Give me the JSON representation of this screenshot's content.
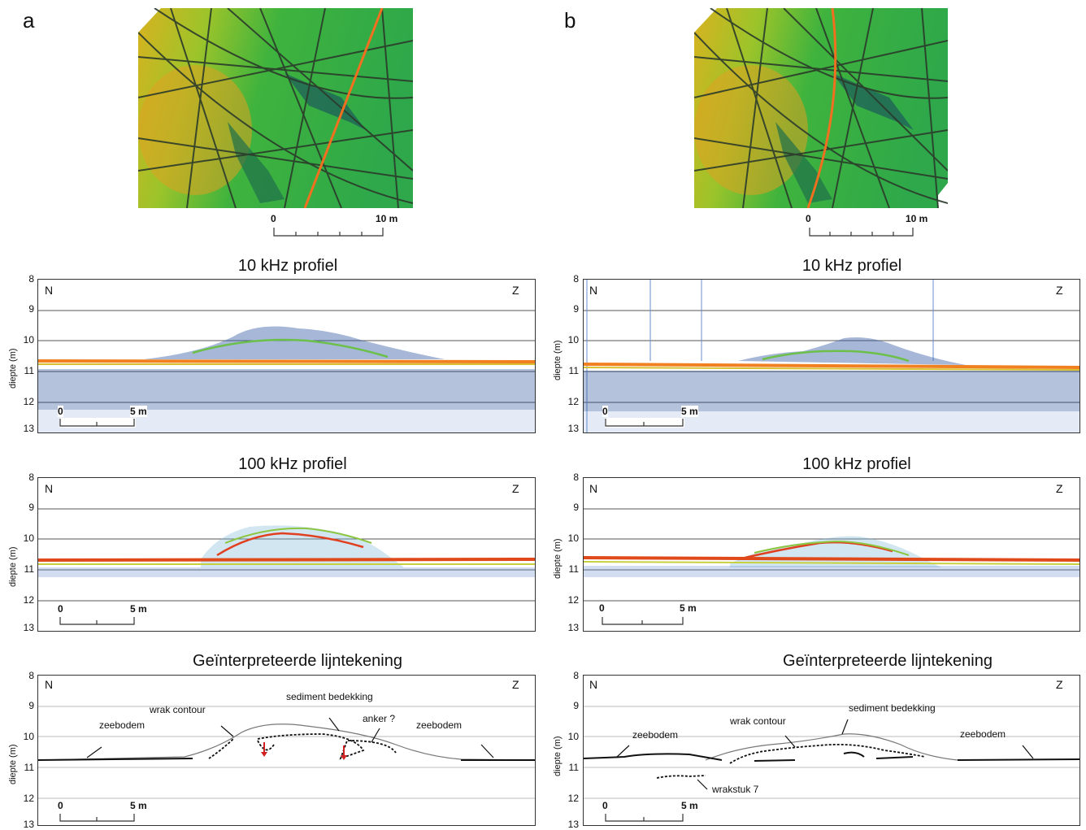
{
  "panels": [
    {
      "letter": "a",
      "map_scale": {
        "start": "0",
        "end": "10 m"
      },
      "profiles": [
        {
          "title": "10 kHz profiel",
          "ylabel": "diepte (m)",
          "yticks": [
            "8",
            "9",
            "10",
            "11",
            "12",
            "13"
          ],
          "north": "N",
          "south": "Z",
          "scale": {
            "start": "0",
            "end": "5 m"
          }
        },
        {
          "title": "100 kHz profiel",
          "ylabel": "diepte (m)",
          "yticks": [
            "8",
            "9",
            "10",
            "11",
            "12",
            "13"
          ],
          "north": "N",
          "south": "Z",
          "scale": {
            "start": "0",
            "end": "5 m"
          }
        },
        {
          "title": "Geïnterpreteerde lijntekening",
          "ylabel": "diepte (m)",
          "yticks": [
            "8",
            "9",
            "10",
            "11",
            "12",
            "13"
          ],
          "north": "N",
          "south": "Z",
          "scale": {
            "start": "0",
            "end": "5 m"
          }
        }
      ],
      "annotations": [
        "zeebodem",
        "wrak contour",
        "sediment bedekking",
        "anker ?",
        "zeebodem"
      ]
    },
    {
      "letter": "b",
      "map_scale": {
        "start": "0",
        "end": "10 m"
      },
      "profiles": [
        {
          "title": "10 kHz profiel",
          "ylabel": "diepte (m)",
          "yticks": [
            "8",
            "9",
            "10",
            "11",
            "12",
            "13"
          ],
          "north": "N",
          "south": "Z",
          "scale": {
            "start": "0",
            "end": "5 m"
          }
        },
        {
          "title": "100 kHz profiel",
          "ylabel": "diepte (m)",
          "yticks": [
            "8",
            "9",
            "10",
            "11",
            "12",
            "13"
          ],
          "north": "N",
          "south": "Z",
          "scale": {
            "start": "0",
            "end": "5 m"
          }
        },
        {
          "title": "Geïnterpreteerde lijntekening",
          "ylabel": "diepte (m)",
          "yticks": [
            "8",
            "9",
            "10",
            "11",
            "12",
            "13"
          ],
          "north": "N",
          "south": "Z",
          "scale": {
            "start": "0",
            "end": "5 m"
          }
        }
      ],
      "annotations": [
        "zeebodem",
        "wrak contour",
        "sediment bedekking",
        "zeebodem",
        "wrakstuk 7"
      ]
    }
  ]
}
